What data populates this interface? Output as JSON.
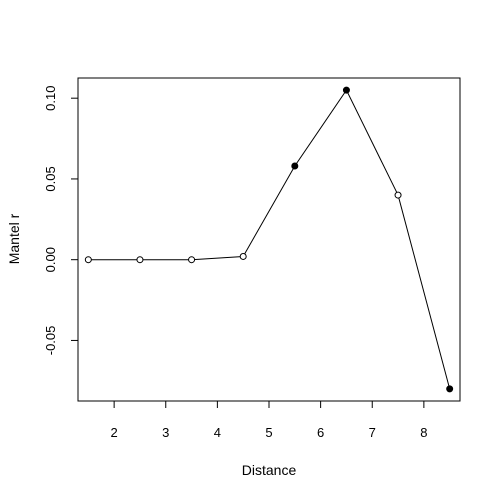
{
  "chart_data": {
    "type": "line",
    "title": "",
    "xlabel": "Distance",
    "ylabel": "Mantel r",
    "xlim": [
      1.3,
      8.7
    ],
    "ylim": [
      -0.0875,
      0.1125
    ],
    "xticks": [
      2,
      3,
      4,
      5,
      6,
      7,
      8
    ],
    "xtick_labels": [
      "2",
      "3",
      "4",
      "5",
      "6",
      "7",
      "8"
    ],
    "yticks": [
      -0.05,
      0.0,
      0.05,
      0.1
    ],
    "ytick_labels": [
      "-0.05",
      "0.00",
      "0.05",
      "0.10"
    ],
    "grid": false,
    "series": [
      {
        "x": [
          1.5,
          2.5,
          3.5,
          4.5,
          5.5,
          6.5,
          7.5,
          8.5
        ],
        "y": [
          0.0,
          0.0,
          0.0,
          0.002,
          0.058,
          0.105,
          0.04,
          -0.08
        ],
        "filled": [
          false,
          false,
          false,
          false,
          true,
          true,
          false,
          true
        ]
      }
    ]
  }
}
